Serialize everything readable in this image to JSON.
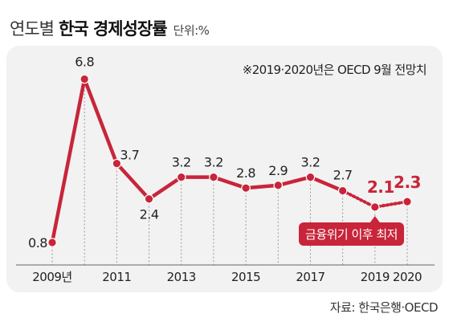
{
  "header": {
    "title_light": "연도별",
    "title_bold": "한국 경제성장률",
    "unit": "단위:%"
  },
  "note": "※2019·2020년은 OECD 9월 전망치",
  "source": "자료: 한국은행·OECD",
  "callout": "금융위기 이후 최저",
  "colors": {
    "series": "#c8253a",
    "panel": "#f2f2f2",
    "callout_bg": "#c8253a",
    "callout_text": "#ffffff"
  },
  "chart_data": {
    "type": "line",
    "x": [
      2009,
      2010,
      2011,
      2012,
      2013,
      2014,
      2015,
      2016,
      2017,
      2018,
      2019,
      2020
    ],
    "x_tick_labels": [
      {
        "x": 2009,
        "label": "2009년"
      },
      {
        "x": 2011,
        "label": "2011"
      },
      {
        "x": 2013,
        "label": "2013"
      },
      {
        "x": 2015,
        "label": "2015"
      },
      {
        "x": 2017,
        "label": "2017"
      },
      {
        "x": 2019,
        "label": "2019"
      },
      {
        "x": 2020,
        "label": "2020"
      }
    ],
    "series": [
      {
        "values": [
          0.8,
          6.8,
          3.7,
          2.4,
          3.2,
          3.2,
          2.8,
          2.9,
          3.2,
          2.7,
          2.1,
          2.3
        ]
      }
    ],
    "data_labels": [
      "0.8",
      "6.8",
      "3.7",
      "2.4",
      "3.2",
      "3.2",
      "2.8",
      "2.9",
      "3.2",
      "2.7",
      "2.1",
      "2.3"
    ],
    "forecast_from": 2019,
    "ylim": [
      0,
      8
    ],
    "grid": "vertical dashed lines at each year",
    "legend": "none"
  }
}
